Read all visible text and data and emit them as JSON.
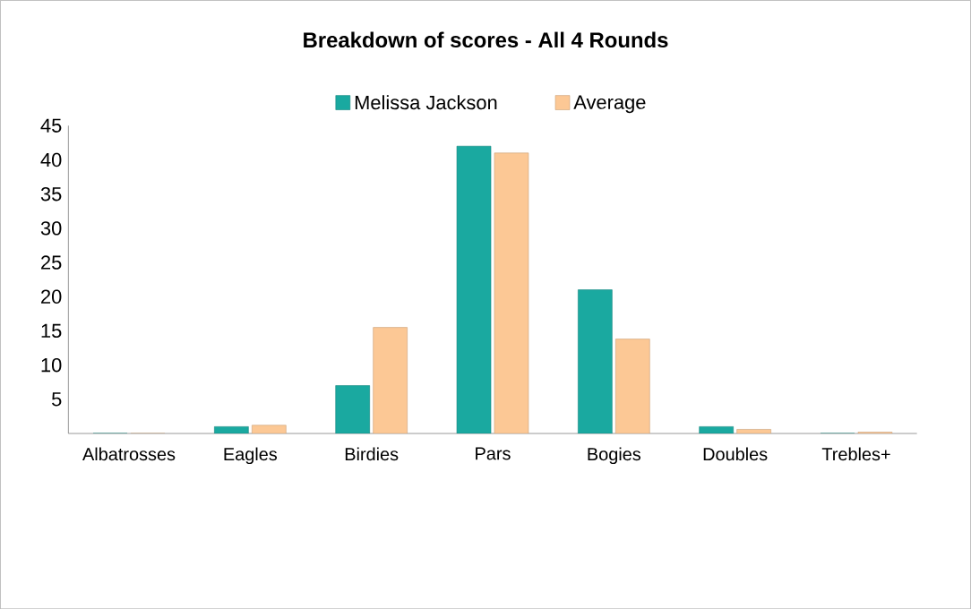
{
  "chart_data": {
    "type": "bar",
    "title": "Breakdown of scores - All 4 Rounds",
    "categories": [
      "Albatrosses",
      "Eagles",
      "Birdies",
      "Pars",
      "Bogies",
      "Doubles",
      "Trebles+"
    ],
    "series": [
      {
        "name": "Melissa Jackson",
        "color": "#1aa9a0",
        "values": [
          0,
          1,
          7,
          42,
          21,
          1,
          0
        ]
      },
      {
        "name": "Average",
        "color": "#fcc895",
        "values": [
          0,
          1.2,
          15.5,
          41,
          13.8,
          0.6,
          0.2
        ]
      }
    ],
    "ylim": [
      0,
      45
    ],
    "yticks": [
      5,
      10,
      15,
      20,
      25,
      30,
      35,
      40,
      45
    ],
    "grid": false,
    "legend": "top"
  }
}
